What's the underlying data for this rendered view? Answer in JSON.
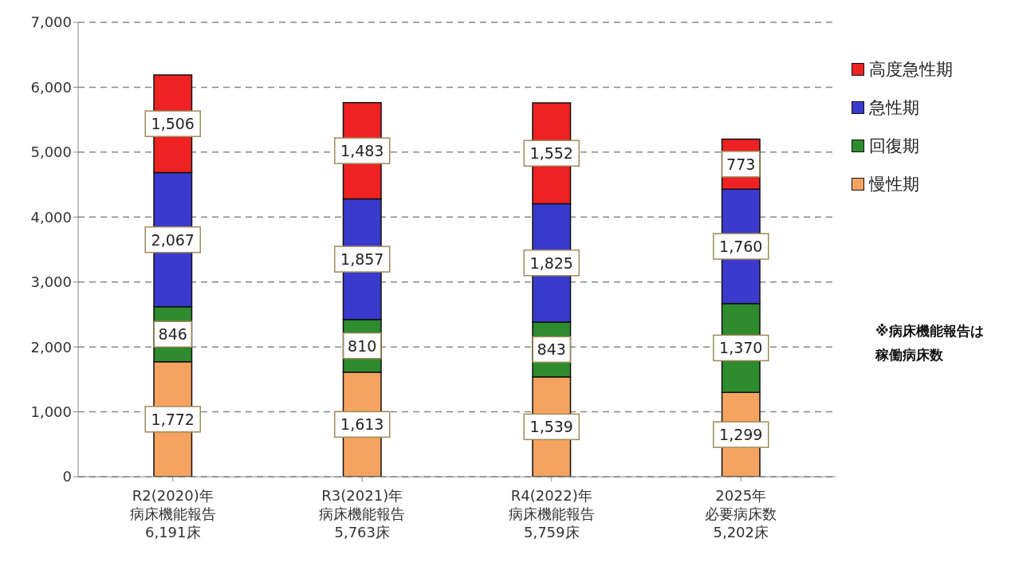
{
  "chart_data": {
    "type": "bar",
    "stacked": true,
    "categories": [
      "R2(2020)年病床機能報告6,191床",
      "R3(2021)年病床機能報告5,763床",
      "R4(2022)年病床機能報告5,759床",
      "2025年必要病床数5,202床"
    ],
    "series": [
      {
        "name": "慢性期",
        "color": "#f4a460",
        "values": [
          1772,
          1613,
          1539,
          1299
        ],
        "value_labels": [
          "1,772",
          "1,613",
          "1,539",
          "1,299"
        ]
      },
      {
        "name": "回復期",
        "color": "#2e8b2e",
        "values": [
          846,
          810,
          843,
          1370
        ],
        "value_labels": [
          "846",
          "810",
          "843",
          "1,370"
        ]
      },
      {
        "name": "急性期",
        "color": "#3a3acc",
        "values": [
          2067,
          1857,
          1825,
          1760
        ],
        "value_labels": [
          "2,067",
          "1,857",
          "1,825",
          "1,760"
        ]
      },
      {
        "name": "高度急性期",
        "color": "#ee2222",
        "values": [
          1506,
          1483,
          1552,
          773
        ],
        "value_labels": [
          "1,506",
          "1,483",
          "1,552",
          "773"
        ]
      }
    ],
    "ylim": [
      0,
      7000
    ],
    "yticks": [
      0,
      {
        "value": 1000,
        "label": "1,000"
      },
      {
        "value": 2000,
        "label": "2,000"
      },
      {
        "value": 3000,
        "label": "3,000"
      },
      {
        "value": 4000,
        "label": "4,000"
      },
      {
        "value": 5000,
        "label": "5,000"
      },
      {
        "value": 6000,
        "label": "6,000"
      },
      {
        "value": 7000,
        "label": "7,000"
      }
    ],
    "grid": "y",
    "legend": "right",
    "annotations": [
      "※病床機能報告は稼働病床数"
    ]
  }
}
